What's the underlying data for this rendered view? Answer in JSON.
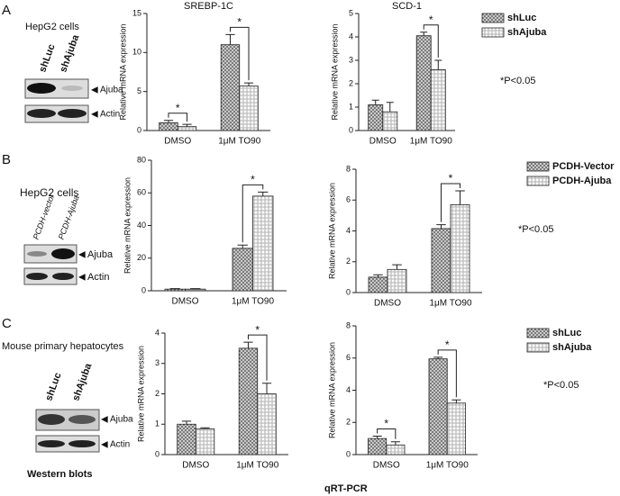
{
  "panels": {
    "A": {
      "label": "A",
      "cell": "HepG2 cells",
      "lanes": [
        "shLuc",
        "shAjuba"
      ],
      "bands": [
        "Ajuba",
        "Actin"
      ]
    },
    "B": {
      "label": "B",
      "cell": "HepG2 cells",
      "lanes": [
        "PCDH-vector",
        "PCDH-Ajuba"
      ],
      "bands": [
        "Ajuba",
        "Actin"
      ]
    },
    "C": {
      "label": "C",
      "cell": "Mouse primary hepatocytes",
      "lanes": [
        "shLuc",
        "shAjuba"
      ],
      "bands": [
        "Ajuba",
        "Actin"
      ]
    }
  },
  "footer": {
    "left": "Western blots",
    "center": "qRT-PCR"
  },
  "chart_data": [
    {
      "type": "bar",
      "title": "SREBP-1C",
      "y_label": "Relative mRNA expression",
      "categories": [
        "DMSO",
        "1μM TO90"
      ],
      "ylim": [
        0,
        15
      ],
      "yticks": [
        0,
        5,
        10,
        15
      ],
      "annotations": [
        "*",
        "*"
      ],
      "series": [
        {
          "color": "#7a7a7a",
          "values": [
            1.0,
            11.0
          ],
          "errors": [
            0.3,
            1.3
          ]
        },
        {
          "color": "#bdbdbd",
          "values": [
            0.5,
            5.7
          ],
          "errors": [
            0.3,
            0.4
          ]
        }
      ]
    },
    {
      "type": "bar",
      "title": "SCD-1",
      "y_label": "Relative mRNA expression",
      "categories": [
        "DMSO",
        "1μM TO90"
      ],
      "ylim": [
        0,
        5
      ],
      "yticks": [
        0,
        1,
        2,
        3,
        4,
        5
      ],
      "annotations": [
        "*"
      ],
      "legend": "right",
      "note": "*P<0.05",
      "series": [
        {
          "name": "shLuc",
          "color": "#7a7a7a",
          "values": [
            1.1,
            4.05
          ],
          "errors": [
            0.2,
            0.15
          ]
        },
        {
          "name": "shAjuba",
          "color": "#bdbdbd",
          "values": [
            0.8,
            2.6
          ],
          "errors": [
            0.4,
            0.4
          ]
        }
      ]
    },
    {
      "type": "bar",
      "y_label": "Relative mRNA expression",
      "categories": [
        "DMSO",
        "1μM TO90"
      ],
      "ylim": [
        0,
        80
      ],
      "yticks": [
        0,
        20,
        40,
        60,
        80
      ],
      "annotations": [
        "*"
      ],
      "series": [
        {
          "color": "#7a7a7a",
          "values": [
            1,
            26
          ],
          "errors": [
            0.3,
            2
          ]
        },
        {
          "color": "#bdbdbd",
          "values": [
            1,
            58
          ],
          "errors": [
            0.3,
            2.5
          ]
        }
      ]
    },
    {
      "type": "bar",
      "y_label": "Relative mRNA expression",
      "categories": [
        "DMSO",
        "1μM TO90"
      ],
      "ylim": [
        0,
        8
      ],
      "yticks": [
        0,
        2,
        4,
        6,
        8
      ],
      "annotations": [
        "*"
      ],
      "legend": "right",
      "note": "*P<0.05",
      "series": [
        {
          "name": "PCDH-Vector",
          "color": "#7a7a7a",
          "values": [
            1.0,
            4.15
          ],
          "errors": [
            0.15,
            0.25
          ]
        },
        {
          "name": "PCDH-Ajuba",
          "color": "#bdbdbd",
          "values": [
            1.5,
            5.7
          ],
          "errors": [
            0.3,
            0.9
          ]
        }
      ]
    },
    {
      "type": "bar",
      "y_label": "Relative mRNA expression",
      "categories": [
        "DMSO",
        "1μM TO90"
      ],
      "ylim": [
        0,
        4
      ],
      "yticks": [
        0,
        1,
        2,
        3,
        4
      ],
      "annotations": [
        "*"
      ],
      "series": [
        {
          "color": "#7a7a7a",
          "values": [
            1.0,
            3.5
          ],
          "errors": [
            0.1,
            0.2
          ]
        },
        {
          "color": "#bdbdbd",
          "values": [
            0.85,
            2.0
          ],
          "errors": [
            0.03,
            0.35
          ]
        }
      ]
    },
    {
      "type": "bar",
      "y_label": "Relative mRNA expression",
      "categories": [
        "DMSO",
        "1μM TO90"
      ],
      "ylim": [
        0,
        8
      ],
      "yticks": [
        0,
        2,
        4,
        6,
        8
      ],
      "annotations": [
        "*",
        "*"
      ],
      "legend": "right",
      "note": "*P<0.05",
      "series": [
        {
          "name": "shLuc",
          "color": "#7a7a7a",
          "values": [
            1.0,
            5.95
          ],
          "errors": [
            0.15,
            0.1
          ]
        },
        {
          "name": "shAjuba",
          "color": "#bdbdbd",
          "values": [
            0.6,
            3.2
          ],
          "errors": [
            0.2,
            0.2
          ]
        }
      ]
    }
  ]
}
